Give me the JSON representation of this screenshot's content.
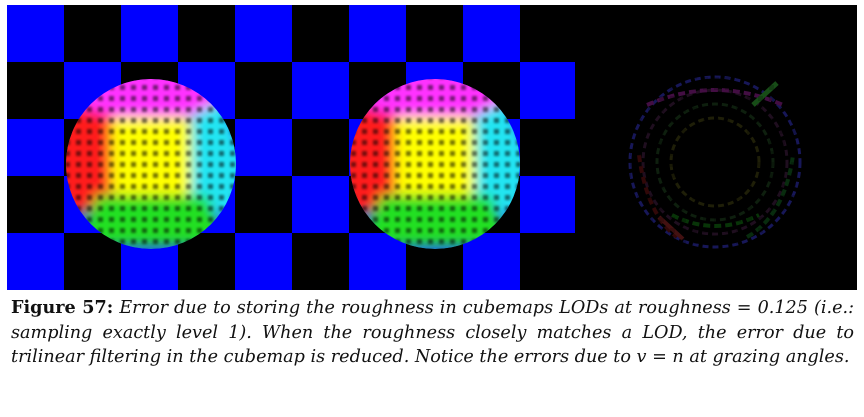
{
  "figure": {
    "label": "Figure 57:",
    "caption": " Error due to storing the roughness in cubemaps LODs at roughness = 0.125 (i.e.: sampling exactly level 1). When the roughness closely matches a LOD, the error due to trilinear filtering in the cubemap is reduced. Notice the errors due to v = n at grazing angles."
  },
  "colors": {
    "checker_blue": "#0000ff",
    "checker_black": "#000000",
    "sphere_yellow": "#ffff00",
    "sphere_red": "#ff1a1a",
    "sphere_magenta": "#ff33ff",
    "sphere_cyan": "#22e5f2",
    "sphere_green": "#20e020",
    "sphere_blue": "#1e5cff"
  }
}
